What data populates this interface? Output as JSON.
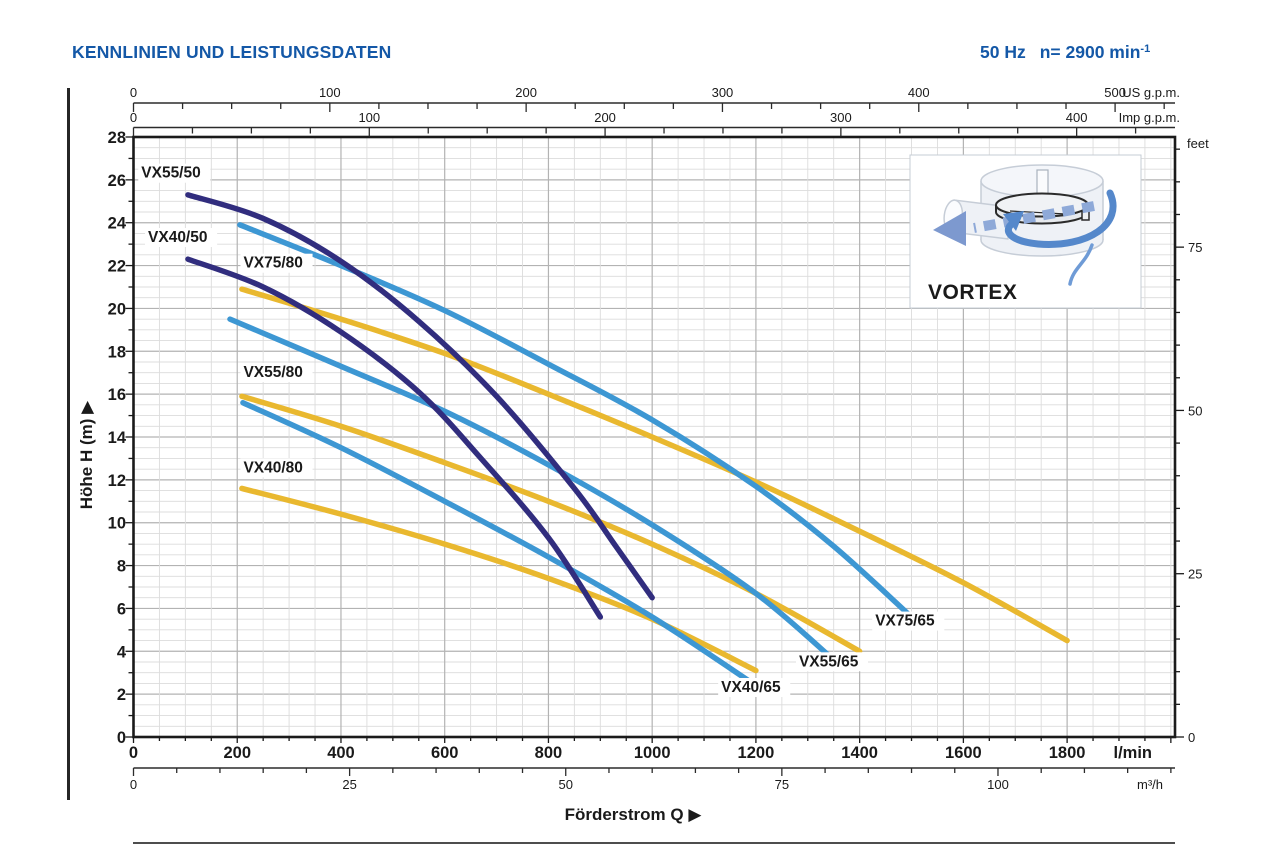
{
  "header": {
    "title": "KENNLINIEN UND LEISTUNGSDATEN",
    "frequency": "50 Hz",
    "speed": "n= 2900 min",
    "speed_sup": "-1",
    "accent_color": "#1458a7"
  },
  "chart_data": {
    "type": "line",
    "xlabel": "Förderstrom Q ▶",
    "ylabel": "Höhe H (m) ▶",
    "x_axis_main": {
      "unit": "l/min",
      "min": 0,
      "max": 2008,
      "major_ticks": [
        0,
        200,
        400,
        600,
        800,
        1000,
        1200,
        1400,
        1600,
        1800
      ],
      "minor_step": 50
    },
    "x_axis_m3h": {
      "unit": "m³/h",
      "lmin_per_unit": 16.667,
      "major_ticks": [
        0,
        25,
        50,
        75,
        100
      ],
      "minor_step": 5
    },
    "x_axis_usgpm": {
      "unit": "US g.p.m.",
      "lmin_per_unit": 3.785,
      "major_ticks": [
        0,
        100,
        200,
        300,
        400,
        500
      ],
      "minor_step": 25
    },
    "x_axis_impgpm": {
      "unit": "Imp g.p.m.",
      "lmin_per_unit": 4.546,
      "major_ticks": [
        0,
        100,
        200,
        300,
        400
      ],
      "minor_step": 25
    },
    "y_axis_m": {
      "min": 0,
      "max": 28,
      "label_step": 2,
      "tick_step": 1,
      "minor_grid_step": 0.5,
      "labels": [
        0,
        2,
        4,
        6,
        8,
        10,
        12,
        14,
        16,
        18,
        20,
        22,
        24,
        26,
        28
      ]
    },
    "y_axis_feet": {
      "unit": "feet",
      "m_per_unit": 0.3048,
      "labeled_ticks": [
        0,
        25,
        50,
        75
      ],
      "minor_step": 5,
      "minor_max": 90
    },
    "grid": {
      "minor_color": "#dcdcdc",
      "major_color": "#b3b3b3",
      "border_color": "#1a1a1a"
    },
    "series": [
      {
        "name": "VX40/80",
        "color": "#e9b82f",
        "points": [
          [
            209,
            11.6
          ],
          [
            400,
            10.4
          ],
          [
            600,
            9.0
          ],
          [
            800,
            7.4
          ],
          [
            1000,
            5.5
          ],
          [
            1200,
            3.1
          ]
        ],
        "label_pos": [
          212,
          12.35
        ]
      },
      {
        "name": "VX55/80",
        "color": "#e9b82f",
        "points": [
          [
            209,
            15.9
          ],
          [
            400,
            14.5
          ],
          [
            600,
            12.8
          ],
          [
            800,
            11.0
          ],
          [
            1000,
            9.0
          ],
          [
            1200,
            6.7
          ],
          [
            1400,
            4.0
          ]
        ],
        "label_pos": [
          212,
          16.8
        ]
      },
      {
        "name": "VX75/80",
        "color": "#e9b82f",
        "points": [
          [
            209,
            20.9
          ],
          [
            400,
            19.5
          ],
          [
            600,
            17.9
          ],
          [
            800,
            16.0
          ],
          [
            1000,
            14.0
          ],
          [
            1200,
            11.9
          ],
          [
            1400,
            9.6
          ],
          [
            1600,
            7.2
          ],
          [
            1800,
            4.5
          ]
        ],
        "label_pos": [
          212,
          21.9
        ]
      },
      {
        "name": "VX40/65",
        "color": "#3d97d3",
        "points": [
          [
            211,
            15.6
          ],
          [
            400,
            13.5
          ],
          [
            600,
            11.0
          ],
          [
            800,
            8.4
          ],
          [
            1000,
            5.6
          ],
          [
            1200,
            2.4
          ]
        ],
        "label_pos": [
          1133,
          2.1
        ]
      },
      {
        "name": "VX55/65",
        "color": "#3d97d3",
        "points": [
          [
            186,
            19.5
          ],
          [
            400,
            17.3
          ],
          [
            600,
            15.2
          ],
          [
            800,
            12.7
          ],
          [
            1000,
            9.9
          ],
          [
            1200,
            6.7
          ],
          [
            1350,
            3.6
          ]
        ],
        "label_pos": [
          1283,
          3.3
        ]
      },
      {
        "name": "VX75/65",
        "color": "#3d97d3",
        "points": [
          [
            205,
            23.9
          ],
          [
            400,
            22.0
          ],
          [
            600,
            19.9
          ],
          [
            800,
            17.4
          ],
          [
            1000,
            14.8
          ],
          [
            1200,
            11.7
          ],
          [
            1350,
            8.9
          ],
          [
            1500,
            5.6
          ]
        ],
        "label_pos": [
          1430,
          5.2
        ]
      },
      {
        "name": "VX40/50",
        "color": "#312d7e",
        "points": [
          [
            105,
            22.3
          ],
          [
            250,
            21.0
          ],
          [
            400,
            18.9
          ],
          [
            550,
            16.1
          ],
          [
            670,
            13.0
          ],
          [
            800,
            9.3
          ],
          [
            900,
            5.6
          ]
        ],
        "label_pos": [
          28,
          23.1
        ]
      },
      {
        "name": "VX55/50",
        "color": "#312d7e",
        "points": [
          [
            105,
            25.3
          ],
          [
            250,
            24.2
          ],
          [
            400,
            22.2
          ],
          [
            550,
            19.4
          ],
          [
            700,
            15.9
          ],
          [
            850,
            11.6
          ],
          [
            930,
            8.9
          ],
          [
            1000,
            6.5
          ]
        ],
        "label_pos": [
          15,
          26.1
        ]
      }
    ],
    "inset": {
      "label": "VORTEX"
    }
  }
}
